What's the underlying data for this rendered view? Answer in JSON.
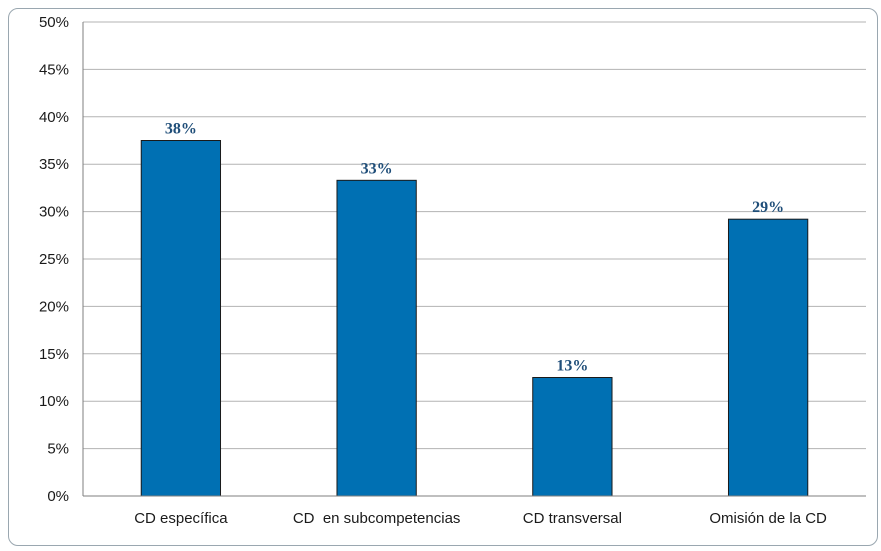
{
  "chart_data": {
    "type": "bar",
    "categories": [
      "CD específica",
      "CD  en subcompetencias",
      "CD transversal",
      "Omisión de la CD"
    ],
    "values": [
      37.5,
      33.3,
      12.5,
      29.2
    ],
    "data_labels": [
      "38%",
      "33%",
      "13%",
      "29%"
    ],
    "yticks": [
      "0%",
      "5%",
      "10%",
      "15%",
      "20%",
      "25%",
      "30%",
      "35%",
      "40%",
      "45%",
      "50%"
    ],
    "ylim": [
      0,
      50
    ],
    "ystep": 5,
    "grid": true,
    "legend": "none",
    "bar_color": "#0070b3"
  }
}
